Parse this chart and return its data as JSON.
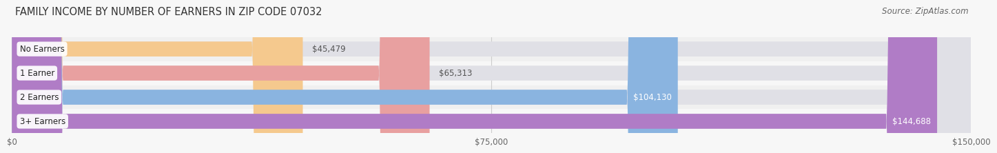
{
  "title": "FAMILY INCOME BY NUMBER OF EARNERS IN ZIP CODE 07032",
  "source": "Source: ZipAtlas.com",
  "categories": [
    "No Earners",
    "1 Earner",
    "2 Earners",
    "3+ Earners"
  ],
  "values": [
    45479,
    65313,
    104130,
    144688
  ],
  "labels": [
    "$45,479",
    "$65,313",
    "$104,130",
    "$144,688"
  ],
  "bar_colors": [
    "#f5c98e",
    "#e8a0a0",
    "#8ab4e0",
    "#b07cc6"
  ],
  "bar_bg_color": "#e0e0e6",
  "label_colors": [
    "#555555",
    "#555555",
    "#ffffff",
    "#ffffff"
  ],
  "label_inside": [
    false,
    false,
    true,
    true
  ],
  "x_max": 150000,
  "x_ticks": [
    0,
    75000,
    150000
  ],
  "x_tick_labels": [
    "$0",
    "$75,000",
    "$150,000"
  ],
  "bg_color": "#f7f7f7",
  "row_bg_colors": [
    "#f0f0f0",
    "#f7f7f7",
    "#f0f0f0",
    "#f7f7f7"
  ],
  "title_fontsize": 10.5,
  "source_fontsize": 8.5,
  "bar_label_fontsize": 8.5,
  "category_fontsize": 8.5,
  "tick_fontsize": 8.5,
  "bar_height": 0.62,
  "n_bars": 4
}
